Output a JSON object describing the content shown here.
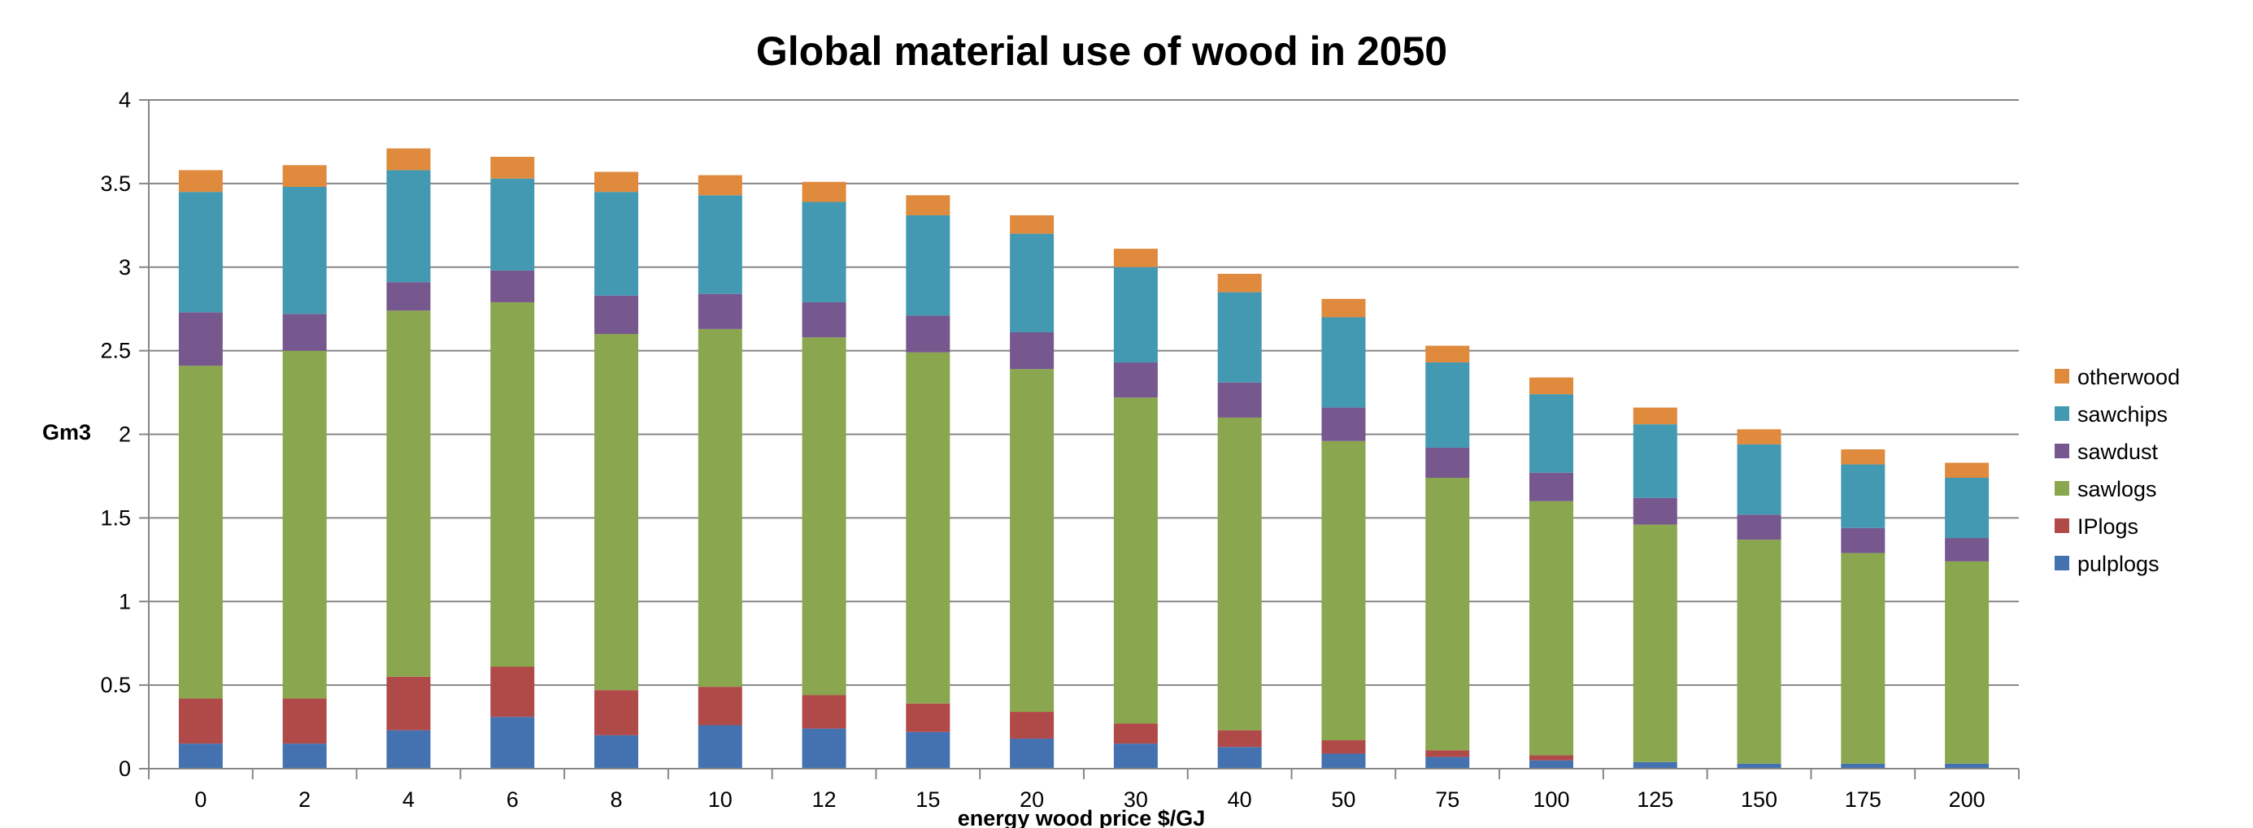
{
  "chart_data": {
    "type": "bar",
    "stacked": true,
    "title": "Global material use of wood in 2050",
    "xlabel": "energy wood price $/GJ",
    "ylabel": "Gm3",
    "ylim": [
      0,
      4
    ],
    "yticks": [
      "0",
      "0.5",
      "1",
      "1.5",
      "2",
      "2.5",
      "3",
      "3.5",
      "4"
    ],
    "grid": "horizontal",
    "legend_position": "right",
    "categories": [
      "0",
      "2",
      "4",
      "6",
      "8",
      "10",
      "12",
      "15",
      "20",
      "30",
      "40",
      "50",
      "75",
      "100",
      "125",
      "150",
      "175",
      "200"
    ],
    "series": [
      {
        "name": "pulplogs",
        "color": "#4472B0",
        "values": [
          0.15,
          0.15,
          0.23,
          0.31,
          0.2,
          0.26,
          0.24,
          0.22,
          0.18,
          0.15,
          0.13,
          0.09,
          0.07,
          0.05,
          0.04,
          0.03,
          0.03,
          0.03
        ]
      },
      {
        "name": "IPlogs",
        "color": "#B04A48",
        "values": [
          0.27,
          0.27,
          0.32,
          0.3,
          0.27,
          0.23,
          0.2,
          0.17,
          0.16,
          0.12,
          0.1,
          0.08,
          0.04,
          0.03,
          0.0,
          0.0,
          0.0,
          0.0
        ]
      },
      {
        "name": "sawlogs",
        "color": "#8AA64E",
        "values": [
          1.99,
          2.08,
          2.19,
          2.18,
          2.13,
          2.14,
          2.14,
          2.1,
          2.05,
          1.95,
          1.87,
          1.79,
          1.63,
          1.52,
          1.42,
          1.34,
          1.26,
          1.21
        ]
      },
      {
        "name": "sawdust",
        "color": "#76588F",
        "values": [
          0.32,
          0.22,
          0.17,
          0.19,
          0.23,
          0.21,
          0.21,
          0.22,
          0.22,
          0.21,
          0.21,
          0.2,
          0.18,
          0.17,
          0.16,
          0.15,
          0.15,
          0.14
        ]
      },
      {
        "name": "sawchips",
        "color": "#4399B2",
        "values": [
          0.72,
          0.76,
          0.67,
          0.55,
          0.62,
          0.59,
          0.6,
          0.6,
          0.59,
          0.57,
          0.54,
          0.54,
          0.51,
          0.47,
          0.44,
          0.42,
          0.38,
          0.36
        ]
      },
      {
        "name": "otherwood",
        "color": "#E08A3E",
        "values": [
          0.13,
          0.13,
          0.13,
          0.13,
          0.12,
          0.12,
          0.12,
          0.12,
          0.11,
          0.11,
          0.11,
          0.11,
          0.1,
          0.1,
          0.1,
          0.09,
          0.09,
          0.09
        ]
      }
    ]
  }
}
